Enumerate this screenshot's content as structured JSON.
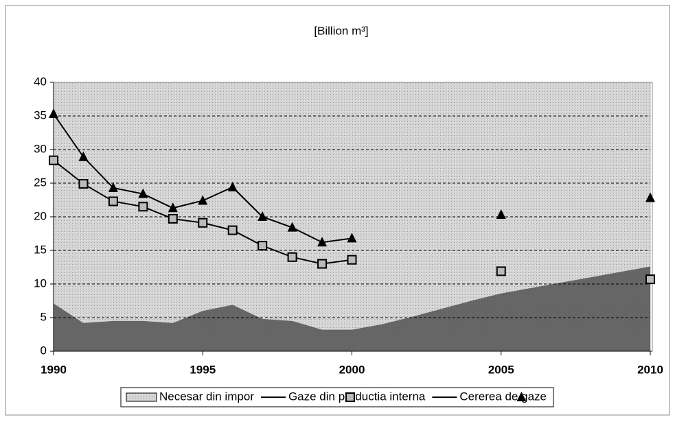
{
  "chart_data": {
    "type": "line",
    "title": "[Billion m³]",
    "x": [
      1990,
      1991,
      1992,
      1993,
      1994,
      1995,
      1996,
      1997,
      1998,
      1999,
      2000,
      2001,
      2002,
      2003,
      2004,
      2005,
      2006,
      2007,
      2008,
      2009,
      2010
    ],
    "series": [
      {
        "name": "Necesar din impor",
        "type": "area",
        "color": "#5a5a5a",
        "values": [
          7.1,
          4.2,
          4.5,
          4.5,
          4.2,
          6.0,
          6.9,
          4.8,
          4.5,
          3.2,
          3.2,
          4.0,
          5.1,
          6.3,
          7.5,
          8.6,
          9.4,
          10.2,
          11.0,
          11.8,
          12.6
        ]
      },
      {
        "name": "Gaze din productia interna",
        "type": "line",
        "marker": "square",
        "color": "#000000",
        "values": [
          28.4,
          24.9,
          22.3,
          21.5,
          19.7,
          19.1,
          18.0,
          15.7,
          14.0,
          13.0,
          13.6,
          null,
          null,
          null,
          null,
          11.9,
          null,
          null,
          null,
          null,
          10.7
        ]
      },
      {
        "name": "Cererea de gaze",
        "type": "line",
        "marker": "triangle",
        "color": "#000000",
        "values": [
          35.3,
          28.9,
          24.3,
          23.4,
          21.3,
          22.4,
          24.4,
          20.0,
          18.4,
          16.2,
          16.8,
          null,
          null,
          null,
          null,
          20.3,
          null,
          null,
          null,
          null,
          22.8
        ]
      }
    ],
    "xlim": [
      1990,
      2010
    ],
    "xticks": [
      1990,
      1995,
      2000,
      2005,
      2010
    ],
    "ylim": [
      0,
      40
    ],
    "yticks": [
      0,
      5,
      10,
      15,
      20,
      25,
      30,
      35,
      40
    ],
    "grid": true,
    "legend": "bottom"
  }
}
